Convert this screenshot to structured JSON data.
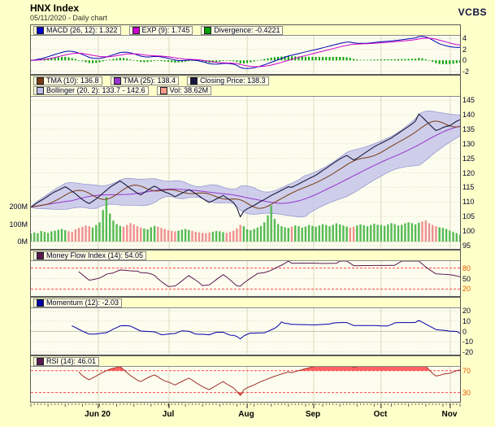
{
  "header": {
    "title": "HNX Index",
    "subtitle": "05/11/2020 - Daily chart",
    "brand": "VCBS"
  },
  "colors": {
    "background": "#FFFFC9",
    "plot_background": "#FDFDEF",
    "panel_border": "#5A5A5A",
    "grid": "#D9D9BE",
    "macd_line": "#0000B4",
    "exp_line": "#CC00CC",
    "divergence_bar": "#00A000",
    "tma10_line": "#7A3A10",
    "tma25_line": "#9933CC",
    "close_line": "#1A1A3C",
    "bollinger_fill": "#C3C3EA",
    "bollinger_edge": "#9898D2",
    "vol_up": "#55BB55",
    "vol_down": "#F09090",
    "mfi_line": "#5A1950",
    "momentum_line": "#0000A8",
    "rsi_line": "#A03028",
    "rsi_fill": "#FF4545",
    "threshold_line": "#FF4545",
    "axis_text": "#00002D",
    "axis_text_red": "#E05500"
  },
  "panels": {
    "macd": {
      "legend": [
        {
          "label": "MACD (26, 12): 1.322",
          "color": "#0000C8"
        },
        {
          "label": "EXP (9): 1.745",
          "color": "#CC00CC"
        },
        {
          "label": "Divergence: -0.4221",
          "color": "#00A000"
        }
      ],
      "y_ticks": [
        {
          "label": "4",
          "v": 4
        },
        {
          "label": "2",
          "v": 2
        },
        {
          "label": "0",
          "v": 0
        },
        {
          "label": "-2",
          "v": -2
        }
      ]
    },
    "price": {
      "legend_row1": [
        {
          "label": "TMA (10): 136.8",
          "color": "#7A3A10"
        },
        {
          "label": "TMA (25): 138.4",
          "color": "#9933CC"
        },
        {
          "label": "Closing Price: 138.3",
          "color": "#16163E"
        }
      ],
      "legend_row2": [
        {
          "label": "Bollinger (20, 2): 133.7 - 142.6",
          "color": "#BDBDE8"
        },
        {
          "label": "Vol: 38.62M",
          "color": "#FF9B85"
        }
      ],
      "y_ticks": [
        {
          "label": "145",
          "v": 145
        },
        {
          "label": "140",
          "v": 140
        },
        {
          "label": "135",
          "v": 135
        },
        {
          "label": "130",
          "v": 130
        },
        {
          "label": "125",
          "v": 125
        },
        {
          "label": "120",
          "v": 120
        },
        {
          "label": "115",
          "v": 115
        },
        {
          "label": "110",
          "v": 110
        },
        {
          "label": "105",
          "v": 105
        },
        {
          "label": "100",
          "v": 100
        },
        {
          "label": "95",
          "v": 95
        }
      ],
      "vol_ticks": [
        {
          "label": "200M",
          "v": 200
        },
        {
          "label": "100M",
          "v": 100
        },
        {
          "label": "0M",
          "v": 0
        }
      ]
    },
    "mfi": {
      "legend": [
        {
          "label": "Money Flow Index (14): 54.05",
          "color": "#5A1950"
        }
      ],
      "y_ticks": [
        {
          "label": "80",
          "v": 80,
          "red": true
        },
        {
          "label": "50",
          "v": 50
        },
        {
          "label": "20",
          "v": 20,
          "red": true
        }
      ]
    },
    "momentum": {
      "legend": [
        {
          "label": "Momentum (12): -2.03",
          "color": "#0000A8"
        }
      ],
      "y_ticks": [
        {
          "label": "20",
          "v": 20
        },
        {
          "label": "10",
          "v": 10
        },
        {
          "label": "0",
          "v": 0
        },
        {
          "label": "-10",
          "v": -10
        },
        {
          "label": "-20",
          "v": -20
        }
      ]
    },
    "rsi": {
      "legend": [
        {
          "label": "RSI (14): 46.01",
          "color": "#5A1950"
        }
      ],
      "y_ticks": [
        {
          "label": "70",
          "v": 70,
          "red": true
        },
        {
          "label": "30",
          "v": 30,
          "red": true
        }
      ]
    }
  },
  "x_axis": {
    "labels": [
      {
        "text": "Jun 20",
        "f": 0.157
      },
      {
        "text": "Jul",
        "f": 0.322
      },
      {
        "text": "Aug",
        "f": 0.504
      },
      {
        "text": "Sep",
        "f": 0.659
      },
      {
        "text": "Oct",
        "f": 0.816
      },
      {
        "text": "Nov",
        "f": 0.977
      }
    ]
  },
  "chart_data": {
    "type": "line",
    "title": "HNX Index",
    "subtitle": "05/11/2020 - Daily chart",
    "x_labels": [
      "Jun 20",
      "Jul",
      "Aug",
      "Sep",
      "Oct",
      "Nov"
    ],
    "price_axis": {
      "min": 95,
      "max": 145,
      "step": 5
    },
    "volume_axis_ticks_m": [
      0,
      100,
      200
    ],
    "close": [
      108.2,
      109.0,
      109.8,
      110.5,
      111.2,
      112.0,
      112.8,
      113.5,
      114.0,
      114.6,
      115.2,
      114.5,
      113.6,
      112.8,
      111.8,
      110.8,
      110.0,
      109.4,
      110.2,
      111.0,
      112.0,
      113.0,
      114.0,
      115.0,
      115.8,
      116.5,
      117.2,
      116.4,
      115.5,
      114.6,
      113.8,
      113.0,
      112.4,
      113.2,
      114.0,
      114.8,
      115.4,
      114.8,
      114.0,
      113.4,
      113.0,
      112.4,
      111.8,
      112.4,
      113.0,
      113.6,
      114.2,
      113.6,
      112.8,
      112.0,
      111.2,
      110.4,
      109.8,
      110.4,
      111.0,
      111.6,
      112.2,
      111.4,
      110.6,
      109.8,
      108.0,
      104.8,
      106.8,
      107.6,
      108.2,
      108.8,
      109.5,
      110.2,
      110.8,
      111.5,
      112.2,
      112.8,
      113.4,
      114.0,
      114.6,
      115.2,
      115.0,
      115.6,
      116.2,
      116.8,
      117.4,
      118.0,
      118.6,
      119.2,
      120.0,
      120.8,
      121.6,
      122.4,
      123.2,
      124.0,
      124.8,
      125.4,
      126.0,
      125.2,
      124.4,
      125.0,
      125.8,
      126.6,
      127.4,
      128.2,
      129.0,
      129.6,
      130.2,
      130.8,
      131.4,
      132.0,
      132.8,
      133.6,
      134.4,
      135.2,
      136.0,
      136.8,
      137.8,
      140.3,
      139.2,
      138.0,
      136.8,
      135.6,
      134.6,
      135.0,
      135.6,
      136.0,
      136.2,
      137.0,
      137.8,
      138.3
    ],
    "volume_m": [
      45,
      52,
      48,
      60,
      55,
      50,
      58,
      62,
      68,
      72,
      65,
      58,
      54,
      70,
      78,
      85,
      92,
      88,
      80,
      95,
      110,
      180,
      255,
      160,
      120,
      100,
      90,
      85,
      95,
      105,
      98,
      88,
      80,
      75,
      70,
      82,
      90,
      85,
      78,
      72,
      65,
      60,
      58,
      62,
      68,
      72,
      66,
      60,
      55,
      52,
      50,
      48,
      52,
      56,
      60,
      58,
      54,
      50,
      55,
      62,
      75,
      95,
      88,
      70,
      65,
      72,
      80,
      90,
      110,
      150,
      205,
      130,
      100,
      88,
      82,
      78,
      85,
      92,
      88,
      80,
      86,
      95,
      90,
      85,
      92,
      100,
      95,
      88,
      96,
      104,
      98,
      92,
      86,
      80,
      85,
      92,
      98,
      94,
      88,
      95,
      102,
      96,
      95,
      90,
      98,
      105,
      100,
      92,
      96,
      104,
      110,
      105,
      98,
      108,
      115,
      120,
      105,
      95,
      88,
      82,
      78,
      72,
      62,
      55,
      48,
      38.62
    ],
    "indicators": {
      "macd": {
        "slow": 26,
        "fast": 12,
        "value": 1.322,
        "exp_period": 9,
        "exp_value": 1.745,
        "divergence": -0.4221,
        "axis_ticks": [
          4,
          2,
          0,
          -2
        ]
      },
      "tma10": 136.8,
      "tma25": 138.4,
      "closing_price": 138.3,
      "bollinger": {
        "period": 20,
        "stddev": 2,
        "lower": 133.7,
        "upper": 142.6
      },
      "volume_last": "38.62M",
      "mfi": {
        "period": 14,
        "value": 54.05,
        "axis_ticks": [
          80,
          50,
          20
        ],
        "thresholds": [
          80,
          20
        ]
      },
      "momentum": {
        "period": 12,
        "value": -2.03,
        "axis_ticks": [
          20,
          10,
          0,
          -10,
          -20
        ]
      },
      "rsi": {
        "period": 14,
        "value": 46.01,
        "axis_ticks": [
          70,
          30
        ],
        "thresholds": [
          70,
          30
        ]
      }
    }
  }
}
